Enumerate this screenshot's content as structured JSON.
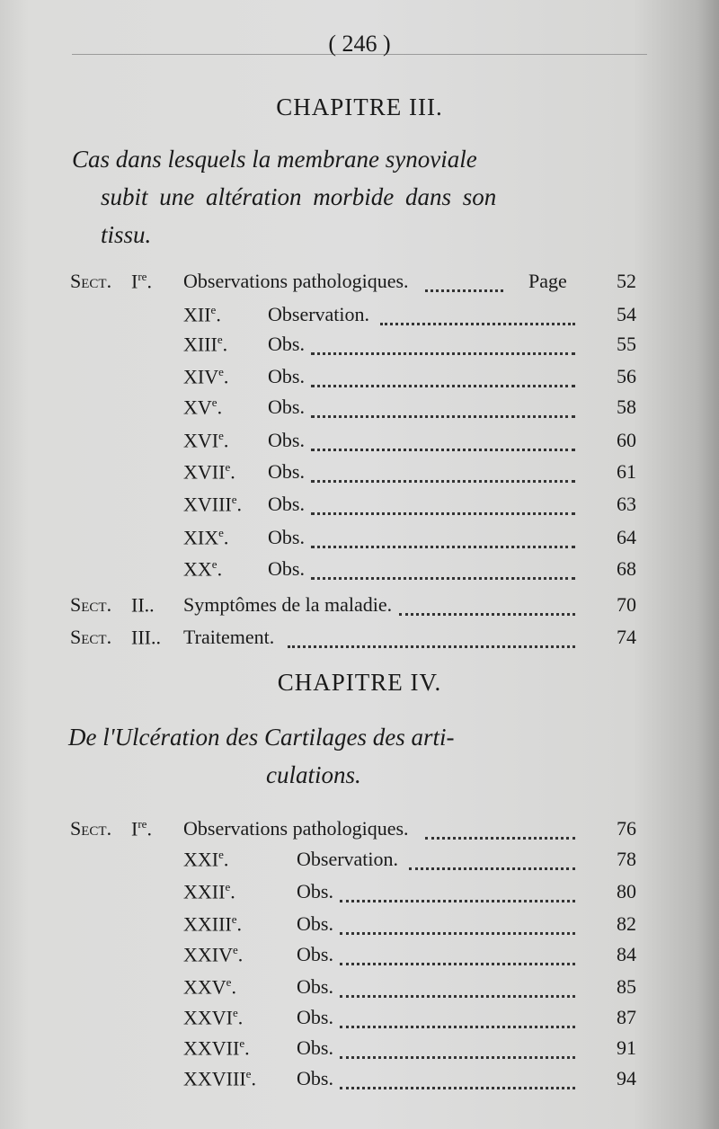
{
  "page_number": "( 246 )",
  "chapter3": {
    "heading": "CHAPITRE III.",
    "title_lines": [
      "Cas dans lesquels la membrane synoviale",
      "subit une altération morbide dans son",
      "tissu."
    ],
    "page_label": "Page",
    "entries": [
      {
        "sect": "Sect.",
        "roman": "I",
        "sup": "re",
        "text": "Observations pathologiques.",
        "page": "52",
        "level": 0
      },
      {
        "roman": "XII",
        "sup": "e",
        "text": "Observation.",
        "page": "54",
        "level": 1
      },
      {
        "roman": "XIII",
        "sup": "e",
        "text": "Obs.",
        "page": "55",
        "level": 1
      },
      {
        "roman": "XIV",
        "sup": "e",
        "text": "Obs.",
        "page": "56",
        "level": 1
      },
      {
        "roman": "XV",
        "sup": "e",
        "text": "Obs.",
        "page": "58",
        "level": 1
      },
      {
        "roman": "XVI",
        "sup": "e",
        "text": "Obs.",
        "page": "60",
        "level": 1
      },
      {
        "roman": "XVII",
        "sup": "e",
        "text": "Obs.",
        "page": "61",
        "level": 1
      },
      {
        "roman": "XVIII",
        "sup": "e",
        "text": "Obs.",
        "page": "63",
        "level": 1
      },
      {
        "roman": "XIX",
        "sup": "e",
        "text": "Obs.",
        "page": "64",
        "level": 1
      },
      {
        "roman": "XX",
        "sup": "e",
        "text": "Obs.",
        "page": "68",
        "level": 1
      },
      {
        "sect": "Sect.",
        "roman": "II.",
        "sup": "",
        "text": "Symptômes de la maladie.",
        "page": "70",
        "level": 0
      },
      {
        "sect": "Sect.",
        "roman": "III.",
        "sup": "",
        "text": "Traitement.",
        "page": "74",
        "level": 0
      }
    ]
  },
  "chapter4": {
    "heading": "CHAPITRE IV.",
    "title_lines": [
      "De l'Ulcération des Cartilages des arti-",
      "culations."
    ],
    "entries": [
      {
        "sect": "Sect.",
        "roman": "I",
        "sup": "re",
        "text": "Observations pathologiques.",
        "page": "76",
        "level": 0
      },
      {
        "roman": "XXI",
        "sup": "e",
        "text": "Observation.",
        "page": "78",
        "level": 1
      },
      {
        "roman": "XXII",
        "sup": "e",
        "text": "Obs.",
        "page": "80",
        "level": 1
      },
      {
        "roman": "XXIII",
        "sup": "e",
        "text": "Obs.",
        "page": "82",
        "level": 1
      },
      {
        "roman": "XXIV",
        "sup": "e",
        "text": "Obs.",
        "page": "84",
        "level": 1
      },
      {
        "roman": "XXV",
        "sup": "e",
        "text": "Obs.",
        "page": "85",
        "level": 1
      },
      {
        "roman": "XXVI",
        "sup": "e",
        "text": "Obs.",
        "page": "87",
        "level": 1
      },
      {
        "roman": "XXVII",
        "sup": "e",
        "text": "Obs.",
        "page": "91",
        "level": 1
      },
      {
        "roman": "XXVIII",
        "sup": "e",
        "text": "Obs.",
        "page": "94",
        "level": 1
      }
    ]
  }
}
